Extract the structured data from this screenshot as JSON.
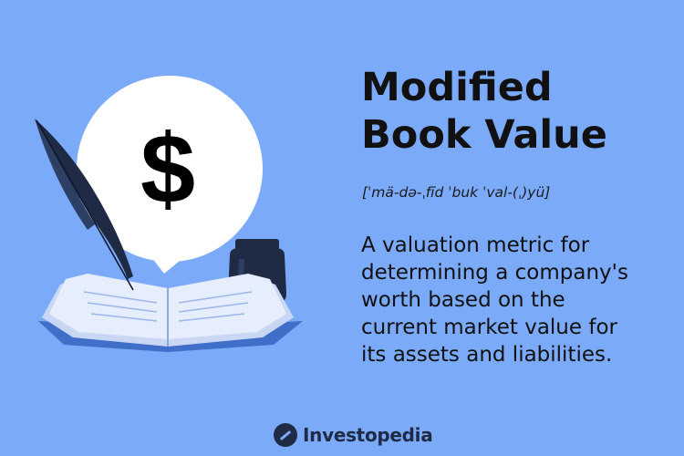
{
  "title_lines": [
    "Modified",
    "Book Value"
  ],
  "pronunciation": "[ˈmä-də-ˌfīd ˈbuk ˈval-(ˌ)yü]",
  "description_lines": [
    "A valuation metric for",
    "determining a company's",
    "worth based on the",
    "current market value for",
    "its assets and liabilities."
  ],
  "bubble_symbol": "$",
  "brand": {
    "name": "Investopedia",
    "icon": "investopedia-logo-icon"
  },
  "colors": {
    "background": "#7AAAF8",
    "ink": "#1f2a44",
    "book_page": "#dfe8fb",
    "book_cover": "#3f6fc9"
  }
}
